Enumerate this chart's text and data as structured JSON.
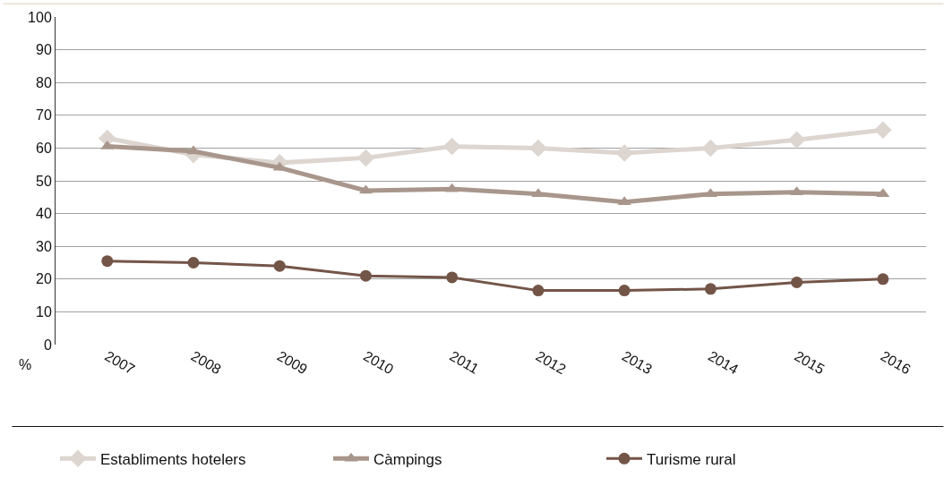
{
  "chart_data": {
    "type": "line",
    "categories": [
      "2007",
      "2008",
      "2009",
      "2010",
      "2011",
      "2012",
      "2013",
      "2014",
      "2015",
      "2016"
    ],
    "series": [
      {
        "name": "Establiments hotelers",
        "color": "#dcd5d0",
        "marker": "diamond",
        "values": [
          63,
          58,
          55.5,
          57,
          60.5,
          60,
          58.5,
          60,
          62.5,
          65.5
        ]
      },
      {
        "name": "Càmpings",
        "color": "#a8968c",
        "marker": "triangle",
        "values": [
          60.5,
          59,
          54,
          47,
          47.5,
          46,
          43.5,
          46,
          46.5,
          46
        ]
      },
      {
        "name": "Turisme rural",
        "color": "#735548",
        "marker": "circle",
        "values": [
          25.5,
          25,
          24,
          21,
          20.5,
          16.5,
          16.5,
          17,
          19,
          20
        ]
      }
    ],
    "ylim": [
      0,
      100
    ],
    "yticks": [
      0,
      10,
      20,
      30,
      40,
      50,
      60,
      70,
      80,
      90,
      100
    ],
    "ylabel": "%",
    "grid": "y",
    "legend": "bottom",
    "line_style": "solid"
  }
}
